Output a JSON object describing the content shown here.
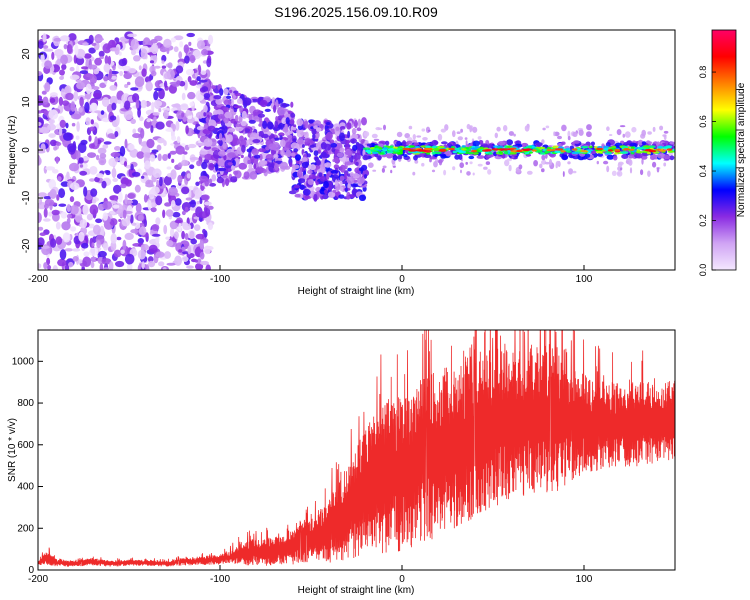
{
  "page": {
    "title": "S196.2025.156.09.10.R09"
  },
  "chart_data": [
    {
      "type": "heatmap",
      "title": "",
      "xlabel": "Height of straight line (km)",
      "ylabel": "Frequency (Hz)",
      "xlim": [
        -200,
        150
      ],
      "ylim": [
        -25,
        25
      ],
      "x_ticks": [
        -200,
        -100,
        0,
        100
      ],
      "y_ticks": [
        -20,
        -10,
        0,
        10,
        20
      ],
      "colorbar": {
        "label": "Normalized spectral amplitude",
        "range": [
          0,
          0.97
        ],
        "ticks": [
          0.0,
          0.2,
          0.4,
          0.6,
          0.8
        ],
        "tick_labels": [
          "0.0",
          "0.2",
          "0.4",
          "0.6",
          "0.8"
        ],
        "colormap": [
          "#f4e8ff",
          "#d0a4f4",
          "#8a2be2",
          "#0000ff",
          "#00ffff",
          "#00ff00",
          "#ffff00",
          "#ff8000",
          "#ff0000",
          "#ff0066"
        ]
      },
      "features": [
        {
          "x_range": [
            -200,
            -110
          ],
          "freq_range": [
            -25,
            24
          ],
          "amplitude": 0.12
        },
        {
          "x_range": [
            -110,
            -60
          ],
          "freq_range": [
            -8,
            14
          ],
          "amplitude": 0.2
        },
        {
          "x_range": [
            -60,
            -20
          ],
          "freq_range": [
            -10,
            6
          ],
          "amplitude": 0.25
        },
        {
          "x_range": [
            -20,
            150
          ],
          "center_freq": 0,
          "freq_halfwidth": 1.5,
          "amplitude": 0.9
        }
      ]
    },
    {
      "type": "line",
      "title": "",
      "xlabel": "Height of straight line (km)",
      "ylabel": "SNR (10 * v/v)",
      "xlim": [
        -200,
        150
      ],
      "ylim": [
        0,
        1150
      ],
      "x_ticks": [
        -200,
        -100,
        0,
        100
      ],
      "y_ticks": [
        0,
        200,
        400,
        600,
        800,
        1000
      ],
      "series": [
        {
          "color": "#ee2a2a",
          "x": [
            -200,
            -195,
            -190,
            -180,
            -170,
            -160,
            -150,
            -140,
            -130,
            -120,
            -110,
            -100,
            -95,
            -90,
            -85,
            -80,
            -75,
            -70,
            -65,
            -60,
            -55,
            -50,
            -45,
            -40,
            -35,
            -30,
            -25,
            -20,
            -15,
            -10,
            -5,
            0,
            5,
            10,
            15,
            20,
            25,
            30,
            35,
            40,
            45,
            50,
            55,
            60,
            65,
            70,
            75,
            80,
            85,
            90,
            95,
            100,
            105,
            110,
            115,
            120,
            125,
            130,
            135,
            140,
            145,
            150
          ],
          "y": [
            30,
            60,
            35,
            30,
            40,
            30,
            35,
            35,
            30,
            40,
            45,
            50,
            60,
            75,
            80,
            90,
            85,
            95,
            100,
            110,
            130,
            140,
            160,
            190,
            230,
            280,
            330,
            380,
            420,
            440,
            450,
            460,
            490,
            520,
            540,
            560,
            580,
            600,
            620,
            640,
            660,
            680,
            690,
            700,
            710,
            720,
            720,
            730,
            720,
            710,
            700,
            700,
            700,
            690,
            690,
            700,
            700,
            700,
            710,
            700,
            710,
            720
          ],
          "noise": [
            10,
            30,
            15,
            12,
            15,
            12,
            12,
            12,
            12,
            15,
            18,
            20,
            25,
            40,
            50,
            55,
            55,
            60,
            60,
            70,
            80,
            90,
            110,
            130,
            160,
            190,
            230,
            260,
            280,
            300,
            300,
            320,
            320,
            330,
            330,
            340,
            330,
            330,
            330,
            330,
            330,
            330,
            300,
            300,
            300,
            300,
            300,
            300,
            300,
            250,
            220,
            200,
            190,
            180,
            180,
            170,
            170,
            170,
            170,
            160,
            160,
            160
          ]
        }
      ]
    }
  ]
}
